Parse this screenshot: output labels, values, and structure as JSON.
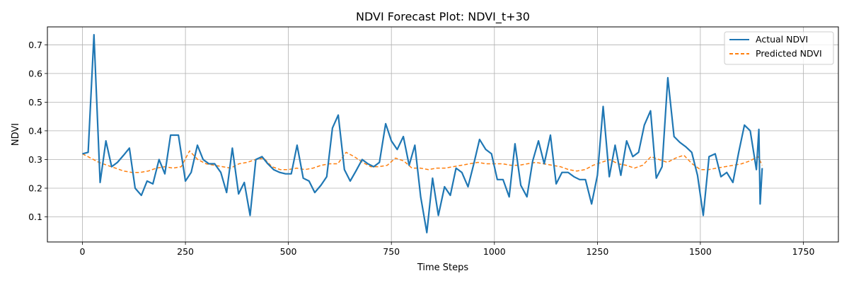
{
  "chart_data": {
    "type": "line",
    "title": "NDVI Forecast Plot: NDVI_t+30",
    "xlabel": "Time Steps",
    "ylabel": "NDVI",
    "xlim": [
      -85,
      1835
    ],
    "ylim": [
      0.0125,
      0.7625
    ],
    "xticks": [
      0,
      250,
      500,
      750,
      1000,
      1250,
      1500,
      1750
    ],
    "yticks": [
      0.1,
      0.2,
      0.3,
      0.4,
      0.5,
      0.6,
      0.7
    ],
    "grid": true,
    "legend_position": "top-right",
    "series": [
      {
        "name": "Actual NDVI",
        "color": "#1f77b4",
        "style": "solid",
        "points": [
          [
            0,
            0.32
          ],
          [
            14,
            0.325
          ],
          [
            28,
            0.735
          ],
          [
            43,
            0.22
          ],
          [
            57,
            0.365
          ],
          [
            71,
            0.275
          ],
          [
            85,
            0.29
          ],
          [
            100,
            0.315
          ],
          [
            114,
            0.34
          ],
          [
            128,
            0.2
          ],
          [
            143,
            0.175
          ],
          [
            157,
            0.225
          ],
          [
            171,
            0.215
          ],
          [
            186,
            0.3
          ],
          [
            200,
            0.25
          ],
          [
            214,
            0.385
          ],
          [
            233,
            0.385
          ],
          [
            250,
            0.225
          ],
          [
            264,
            0.255
          ],
          [
            279,
            0.35
          ],
          [
            293,
            0.3
          ],
          [
            307,
            0.285
          ],
          [
            321,
            0.285
          ],
          [
            336,
            0.255
          ],
          [
            350,
            0.185
          ],
          [
            364,
            0.34
          ],
          [
            379,
            0.18
          ],
          [
            393,
            0.22
          ],
          [
            407,
            0.105
          ],
          [
            421,
            0.3
          ],
          [
            436,
            0.31
          ],
          [
            450,
            0.285
          ],
          [
            464,
            0.265
          ],
          [
            479,
            0.255
          ],
          [
            493,
            0.25
          ],
          [
            507,
            0.25
          ],
          [
            521,
            0.35
          ],
          [
            536,
            0.235
          ],
          [
            550,
            0.225
          ],
          [
            564,
            0.185
          ],
          [
            579,
            0.21
          ],
          [
            593,
            0.24
          ],
          [
            607,
            0.41
          ],
          [
            621,
            0.455
          ],
          [
            636,
            0.265
          ],
          [
            650,
            0.225
          ],
          [
            664,
            0.26
          ],
          [
            679,
            0.3
          ],
          [
            693,
            0.285
          ],
          [
            707,
            0.275
          ],
          [
            721,
            0.29
          ],
          [
            736,
            0.425
          ],
          [
            750,
            0.365
          ],
          [
            764,
            0.335
          ],
          [
            779,
            0.38
          ],
          [
            793,
            0.28
          ],
          [
            807,
            0.35
          ],
          [
            821,
            0.17
          ],
          [
            836,
            0.045
          ],
          [
            850,
            0.235
          ],
          [
            864,
            0.105
          ],
          [
            879,
            0.205
          ],
          [
            893,
            0.175
          ],
          [
            907,
            0.27
          ],
          [
            921,
            0.255
          ],
          [
            936,
            0.205
          ],
          [
            950,
            0.285
          ],
          [
            964,
            0.37
          ],
          [
            979,
            0.335
          ],
          [
            993,
            0.32
          ],
          [
            1007,
            0.23
          ],
          [
            1021,
            0.23
          ],
          [
            1036,
            0.17
          ],
          [
            1050,
            0.355
          ],
          [
            1064,
            0.21
          ],
          [
            1079,
            0.17
          ],
          [
            1093,
            0.295
          ],
          [
            1107,
            0.365
          ],
          [
            1121,
            0.285
          ],
          [
            1136,
            0.385
          ],
          [
            1150,
            0.215
          ],
          [
            1164,
            0.255
          ],
          [
            1179,
            0.255
          ],
          [
            1193,
            0.24
          ],
          [
            1207,
            0.23
          ],
          [
            1221,
            0.23
          ],
          [
            1236,
            0.145
          ],
          [
            1250,
            0.245
          ],
          [
            1264,
            0.485
          ],
          [
            1279,
            0.24
          ],
          [
            1293,
            0.35
          ],
          [
            1307,
            0.245
          ],
          [
            1321,
            0.365
          ],
          [
            1336,
            0.31
          ],
          [
            1350,
            0.325
          ],
          [
            1364,
            0.42
          ],
          [
            1379,
            0.47
          ],
          [
            1393,
            0.235
          ],
          [
            1407,
            0.275
          ],
          [
            1421,
            0.585
          ],
          [
            1436,
            0.38
          ],
          [
            1450,
            0.36
          ],
          [
            1464,
            0.345
          ],
          [
            1479,
            0.325
          ],
          [
            1493,
            0.245
          ],
          [
            1507,
            0.105
          ],
          [
            1521,
            0.31
          ],
          [
            1536,
            0.32
          ],
          [
            1550,
            0.24
          ],
          [
            1564,
            0.255
          ],
          [
            1579,
            0.22
          ],
          [
            1593,
            0.325
          ],
          [
            1607,
            0.42
          ],
          [
            1621,
            0.4
          ],
          [
            1636,
            0.265
          ],
          [
            1642,
            0.405
          ],
          [
            1645,
            0.145
          ],
          [
            1650,
            0.27
          ]
        ]
      },
      {
        "name": "Predicted NDVI",
        "color": "#ff7f0e",
        "style": "dashed",
        "points": [
          [
            0,
            0.32
          ],
          [
            20,
            0.305
          ],
          [
            40,
            0.29
          ],
          [
            60,
            0.28
          ],
          [
            80,
            0.27
          ],
          [
            100,
            0.26
          ],
          [
            120,
            0.255
          ],
          [
            140,
            0.255
          ],
          [
            160,
            0.26
          ],
          [
            180,
            0.27
          ],
          [
            200,
            0.275
          ],
          [
            220,
            0.27
          ],
          [
            240,
            0.275
          ],
          [
            260,
            0.33
          ],
          [
            280,
            0.3
          ],
          [
            300,
            0.285
          ],
          [
            320,
            0.28
          ],
          [
            340,
            0.275
          ],
          [
            360,
            0.27
          ],
          [
            380,
            0.285
          ],
          [
            400,
            0.29
          ],
          [
            420,
            0.3
          ],
          [
            440,
            0.305
          ],
          [
            460,
            0.275
          ],
          [
            480,
            0.265
          ],
          [
            500,
            0.265
          ],
          [
            520,
            0.27
          ],
          [
            540,
            0.265
          ],
          [
            560,
            0.27
          ],
          [
            580,
            0.28
          ],
          [
            600,
            0.285
          ],
          [
            620,
            0.285
          ],
          [
            640,
            0.325
          ],
          [
            660,
            0.31
          ],
          [
            680,
            0.29
          ],
          [
            700,
            0.275
          ],
          [
            720,
            0.275
          ],
          [
            740,
            0.28
          ],
          [
            760,
            0.305
          ],
          [
            780,
            0.295
          ],
          [
            800,
            0.27
          ],
          [
            820,
            0.27
          ],
          [
            840,
            0.265
          ],
          [
            860,
            0.27
          ],
          [
            880,
            0.27
          ],
          [
            900,
            0.275
          ],
          [
            920,
            0.28
          ],
          [
            940,
            0.285
          ],
          [
            960,
            0.29
          ],
          [
            980,
            0.285
          ],
          [
            1000,
            0.285
          ],
          [
            1020,
            0.285
          ],
          [
            1040,
            0.28
          ],
          [
            1060,
            0.28
          ],
          [
            1080,
            0.285
          ],
          [
            1100,
            0.29
          ],
          [
            1120,
            0.285
          ],
          [
            1140,
            0.28
          ],
          [
            1160,
            0.275
          ],
          [
            1180,
            0.265
          ],
          [
            1200,
            0.26
          ],
          [
            1220,
            0.265
          ],
          [
            1240,
            0.28
          ],
          [
            1260,
            0.29
          ],
          [
            1280,
            0.3
          ],
          [
            1300,
            0.285
          ],
          [
            1320,
            0.28
          ],
          [
            1340,
            0.27
          ],
          [
            1360,
            0.28
          ],
          [
            1380,
            0.31
          ],
          [
            1400,
            0.3
          ],
          [
            1420,
            0.29
          ],
          [
            1440,
            0.305
          ],
          [
            1460,
            0.315
          ],
          [
            1480,
            0.285
          ],
          [
            1500,
            0.265
          ],
          [
            1520,
            0.265
          ],
          [
            1540,
            0.27
          ],
          [
            1560,
            0.275
          ],
          [
            1580,
            0.28
          ],
          [
            1600,
            0.285
          ],
          [
            1620,
            0.295
          ],
          [
            1640,
            0.31
          ],
          [
            1650,
            0.28
          ]
        ]
      }
    ]
  }
}
